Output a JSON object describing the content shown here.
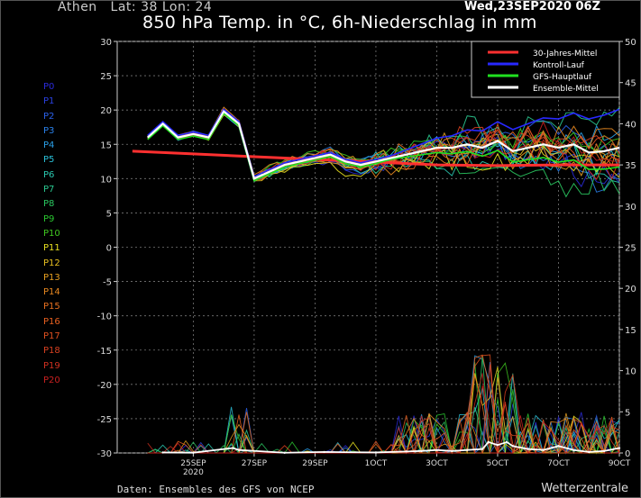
{
  "header": {
    "location": "Athen   Lat: 38 Lon: 24",
    "run": "Wed,23SEP2020 06Z",
    "title": "850 hPa Temp. in °C, 6h-Niederschlag in mm"
  },
  "footer": {
    "source": "Daten: Ensembles des GFS von NCEP",
    "brand": "Wetterzentrale"
  },
  "members": [
    {
      "label": "P0",
      "color": "#2a2ad8"
    },
    {
      "label": "P1",
      "color": "#2a40e0"
    },
    {
      "label": "P2",
      "color": "#2a60e8"
    },
    {
      "label": "P3",
      "color": "#2a80e8"
    },
    {
      "label": "P4",
      "color": "#2aa0e8"
    },
    {
      "label": "P5",
      "color": "#2ac0d8"
    },
    {
      "label": "P6",
      "color": "#2ac8b0"
    },
    {
      "label": "P7",
      "color": "#2ac890"
    },
    {
      "label": "P8",
      "color": "#2ac860"
    },
    {
      "label": "P9",
      "color": "#2ac830"
    },
    {
      "label": "P10",
      "color": "#40c820"
    },
    {
      "label": "P11",
      "color": "#e8e020"
    },
    {
      "label": "P12",
      "color": "#e8c020"
    },
    {
      "label": "P13",
      "color": "#e8a020"
    },
    {
      "label": "P14",
      "color": "#e88820"
    },
    {
      "label": "P15",
      "color": "#e87020"
    },
    {
      "label": "P16",
      "color": "#e86020"
    },
    {
      "label": "P17",
      "color": "#e05020"
    },
    {
      "label": "P18",
      "color": "#d84020"
    },
    {
      "label": "P19",
      "color": "#d03020"
    },
    {
      "label": "P20",
      "color": "#c82020"
    }
  ],
  "chart_data": {
    "type": "line",
    "title": "850 hPa Temp. in °C, 6h-Niederschlag in mm",
    "y_left": {
      "min": -30,
      "max": 30,
      "ticks": [
        -30,
        -25,
        -20,
        -15,
        -10,
        -5,
        0,
        5,
        10,
        15,
        20,
        25,
        30
      ]
    },
    "y_right": {
      "min": 0,
      "max": 50,
      "ticks": [
        0,
        5,
        10,
        15,
        20,
        25,
        30,
        35,
        40,
        45,
        50
      ]
    },
    "x_ticks": [
      {
        "day": 2,
        "label": "25SEP",
        "sub": "2020"
      },
      {
        "day": 4,
        "label": "27SEP",
        "sub": ""
      },
      {
        "day": 6,
        "label": "29SEP",
        "sub": ""
      },
      {
        "day": 8,
        "label": "1OCT",
        "sub": ""
      },
      {
        "day": 10,
        "label": "3OCT",
        "sub": ""
      },
      {
        "day": 12,
        "label": "5OCT",
        "sub": ""
      },
      {
        "day": 14,
        "label": "7OCT",
        "sub": ""
      },
      {
        "day": 16,
        "label": "9OCT",
        "sub": ""
      }
    ],
    "grid": true,
    "legend_position": "top-right",
    "legend": [
      {
        "name": "30-Jahres-Mittel",
        "color": "#ff3030"
      },
      {
        "name": "Kontroll-Lauf",
        "color": "#2828ff"
      },
      {
        "name": "GFS-Hauptlauf",
        "color": "#20e020"
      },
      {
        "name": "Ensemble-Mittel",
        "color": "#ffffff"
      }
    ],
    "climatology": {
      "days": [
        0,
        2,
        4,
        6,
        8,
        10,
        12,
        14,
        16
      ],
      "values": [
        14.0,
        13.6,
        13.2,
        12.8,
        12.4,
        12.0,
        11.9,
        12.0,
        12.0
      ]
    },
    "ensemble_mean_temp": {
      "days": [
        0.5,
        1,
        1.5,
        2,
        2.5,
        3,
        3.5,
        4,
        4.5,
        5,
        5.5,
        6,
        6.5,
        7,
        7.5,
        8,
        8.5,
        9,
        9.5,
        10,
        10.5,
        11,
        11.5,
        12,
        12.5,
        13,
        13.5,
        14,
        14.5,
        15,
        15.5,
        16
      ],
      "values": [
        16,
        18,
        16,
        16.5,
        16,
        19.8,
        18,
        10,
        11,
        12,
        12.5,
        13,
        13.5,
        12.5,
        12,
        12.5,
        13,
        13.5,
        14,
        14.5,
        14.5,
        15,
        14.5,
        15.5,
        14,
        14.5,
        15,
        14.5,
        15,
        13.8,
        14,
        14.5
      ]
    },
    "precip_mm": {
      "days": [
        1,
        2,
        3.3,
        3.5,
        5,
        6.3,
        8,
        9,
        9.5,
        10,
        10.5,
        11,
        11.5,
        11.7,
        12,
        12.3,
        12.5,
        13,
        13.5,
        14,
        14.5,
        15,
        15.5,
        16
      ],
      "values": [
        0.5,
        0.3,
        5,
        3,
        0.2,
        1,
        0.5,
        1.5,
        2,
        3,
        2,
        3,
        4,
        11,
        8,
        11,
        7,
        4,
        3,
        7,
        3,
        1,
        2,
        5
      ]
    }
  }
}
